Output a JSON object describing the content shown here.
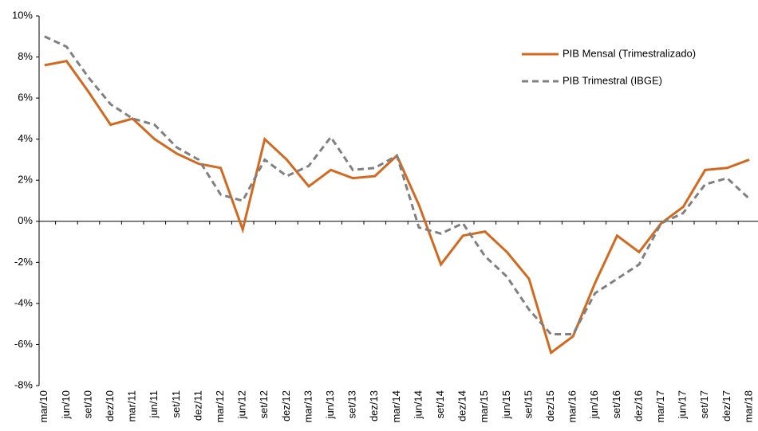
{
  "chart_data": {
    "type": "line",
    "categories": [
      "mar/10",
      "jun/10",
      "set/10",
      "dez/10",
      "mar/11",
      "jun/11",
      "set/11",
      "dez/11",
      "mar/12",
      "jun/12",
      "set/12",
      "dez/12",
      "mar/13",
      "jun/13",
      "set/13",
      "dez/13",
      "mar/14",
      "jun/14",
      "set/14",
      "dez/14",
      "mar/15",
      "jun/15",
      "set/15",
      "dez/15",
      "mar/16",
      "jun/16",
      "set/16",
      "dez/16",
      "mar/17",
      "jun/17",
      "set/17",
      "dez/17",
      "mar/18"
    ],
    "series": [
      {
        "name": "PIB Mensal (Trimestralizado)",
        "color": "#d2691e",
        "dash": false,
        "values": [
          7.6,
          7.8,
          6.3,
          4.7,
          5.0,
          4.0,
          3.3,
          2.8,
          2.6,
          -0.4,
          4.0,
          3.0,
          1.7,
          2.5,
          2.1,
          2.2,
          3.2,
          0.8,
          -2.1,
          -0.7,
          -0.5,
          -1.5,
          -2.8,
          -6.4,
          -5.6,
          -3.0,
          -0.7,
          -1.5,
          -0.1,
          0.7,
          2.5,
          2.6,
          3.0
        ]
      },
      {
        "name": "PIB Trimestral (IBGE)",
        "color": "#808080",
        "dash": true,
        "values": [
          9.0,
          8.5,
          7.0,
          5.7,
          5.0,
          4.7,
          3.6,
          3.0,
          1.3,
          1.0,
          3.0,
          2.2,
          2.7,
          4.1,
          2.5,
          2.6,
          3.2,
          -0.3,
          -0.6,
          -0.1,
          -1.7,
          -2.7,
          -4.3,
          -5.5,
          -5.5,
          -3.5,
          -2.8,
          -2.1,
          -0.1,
          0.4,
          1.8,
          2.1,
          1.1
        ]
      }
    ],
    "ylim": [
      -8,
      10
    ],
    "yticks": [
      {
        "value": -8,
        "label": "-8%"
      },
      {
        "value": -6,
        "label": "-6%"
      },
      {
        "value": -4,
        "label": "-4%"
      },
      {
        "value": -2,
        "label": "-2%"
      },
      {
        "value": 0,
        "label": "0%"
      },
      {
        "value": 2,
        "label": "2%"
      },
      {
        "value": 4,
        "label": "4%"
      },
      {
        "value": 6,
        "label": "6%"
      },
      {
        "value": 8,
        "label": "8%"
      },
      {
        "value": 10,
        "label": "10%"
      }
    ],
    "legend": "upper-right",
    "grid": false
  }
}
